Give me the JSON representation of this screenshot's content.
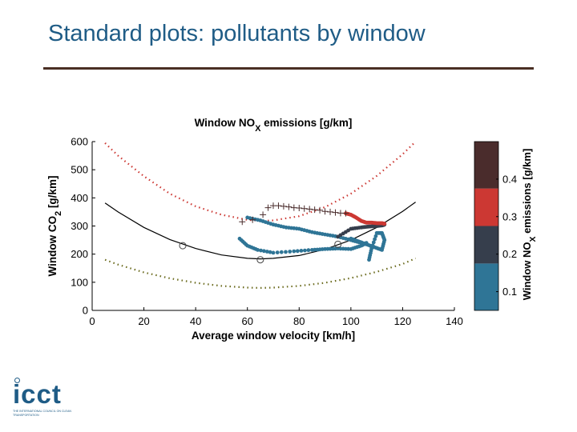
{
  "slide": {
    "title": "Standard plots: pollutants by window"
  },
  "logo": {
    "word": "icct",
    "tagline": "THE INTERNATIONAL COUNCIL ON CLEAN TRANSPORTATION"
  },
  "chart_data": {
    "type": "scatter",
    "title": "Window NOX emissions [g/km]",
    "xlabel": "Average window velocity [km/h]",
    "ylabel": "Window CO2 [g/km]",
    "xlim": [
      0,
      140
    ],
    "ylim": [
      0,
      600
    ],
    "xticks": [
      0,
      20,
      40,
      60,
      80,
      100,
      120,
      140
    ],
    "yticks": [
      0,
      100,
      200,
      300,
      400,
      500,
      600
    ],
    "grid": false,
    "colorbar": {
      "label": "Window NOX emissions [g/km]",
      "ticks": [
        0.1,
        0.2,
        0.3,
        0.4
      ],
      "bands": [
        {
          "color": "#2f7596",
          "from": 0.05,
          "to": 0.175
        },
        {
          "color": "#363e4c",
          "from": 0.175,
          "to": 0.275
        },
        {
          "color": "#cc3833",
          "from": 0.275,
          "to": 0.375
        },
        {
          "color": "#4a2c2c",
          "from": 0.375,
          "to": 0.5
        }
      ]
    },
    "reference_curves": [
      {
        "style": "solid",
        "color": "#000000",
        "x": [
          5,
          10,
          20,
          30,
          40,
          50,
          60,
          65,
          70,
          80,
          90,
          100,
          110,
          120,
          125
        ],
        "y": [
          382,
          350,
          295,
          252,
          220,
          197,
          185,
          183,
          185,
          195,
          217,
          250,
          295,
          352,
          385
        ]
      },
      {
        "style": "dotted",
        "color": "#cc3833",
        "x": [
          5,
          10,
          20,
          30,
          40,
          50,
          60,
          65,
          70,
          80,
          90,
          100,
          110,
          120,
          125
        ],
        "y": [
          595,
          550,
          477,
          415,
          370,
          340,
          322,
          318,
          320,
          335,
          367,
          415,
          478,
          555,
          600
        ]
      },
      {
        "style": "dotted",
        "color": "#6b6b1e",
        "x": [
          5,
          10,
          20,
          30,
          40,
          50,
          60,
          65,
          70,
          80,
          90,
          100,
          110,
          120,
          125
        ],
        "y": [
          180,
          163,
          135,
          114,
          98,
          87,
          81,
          80,
          81,
          87,
          98,
          115,
          137,
          165,
          185
        ]
      }
    ],
    "reference_points": {
      "marker": "circle",
      "x": [
        35,
        65,
        95
      ],
      "y": [
        230,
        180,
        235
      ]
    },
    "series": [
      {
        "nox": 0.1,
        "segment": "lower loop",
        "x": [
          57,
          60,
          64,
          70,
          78,
          85,
          90,
          95,
          100,
          104,
          106
        ],
        "y": [
          255,
          230,
          215,
          205,
          210,
          215,
          218,
          220,
          218,
          230,
          240
        ]
      },
      {
        "nox": 0.1,
        "segment": "upper band",
        "x": [
          60,
          65,
          70,
          75,
          80,
          85,
          90,
          95,
          100,
          104
        ],
        "y": [
          330,
          320,
          305,
          295,
          290,
          278,
          270,
          262,
          250,
          240
        ]
      },
      {
        "nox": 0.1,
        "segment": "right hook",
        "x": [
          100,
          103,
          106,
          109,
          112,
          113,
          112,
          110,
          108,
          107
        ],
        "y": [
          255,
          245,
          235,
          225,
          215,
          250,
          275,
          275,
          220,
          180
        ]
      },
      {
        "nox": 0.25,
        "segment": "dark points",
        "x": [
          95,
          100,
          104,
          107,
          110,
          112,
          113
        ],
        "y": [
          262,
          290,
          295,
          298,
          300,
          302,
          305
        ]
      },
      {
        "nox": 0.35,
        "segment": "red trail",
        "x": [
          98,
          100,
          102,
          104,
          106,
          108,
          110,
          112,
          113
        ],
        "y": [
          345,
          340,
          330,
          318,
          312,
          312,
          310,
          310,
          308
        ]
      },
      {
        "nox": 0.45,
        "segment": "plus markers",
        "marker": "plus",
        "x": [
          58,
          62,
          66,
          68,
          70,
          72,
          74,
          76,
          78,
          80,
          82,
          84,
          86,
          88,
          90,
          92,
          94,
          96,
          98
        ],
        "y": [
          315,
          322,
          340,
          365,
          372,
          372,
          370,
          368,
          365,
          364,
          362,
          360,
          358,
          356,
          352,
          350,
          348,
          346,
          345
        ]
      }
    ]
  }
}
